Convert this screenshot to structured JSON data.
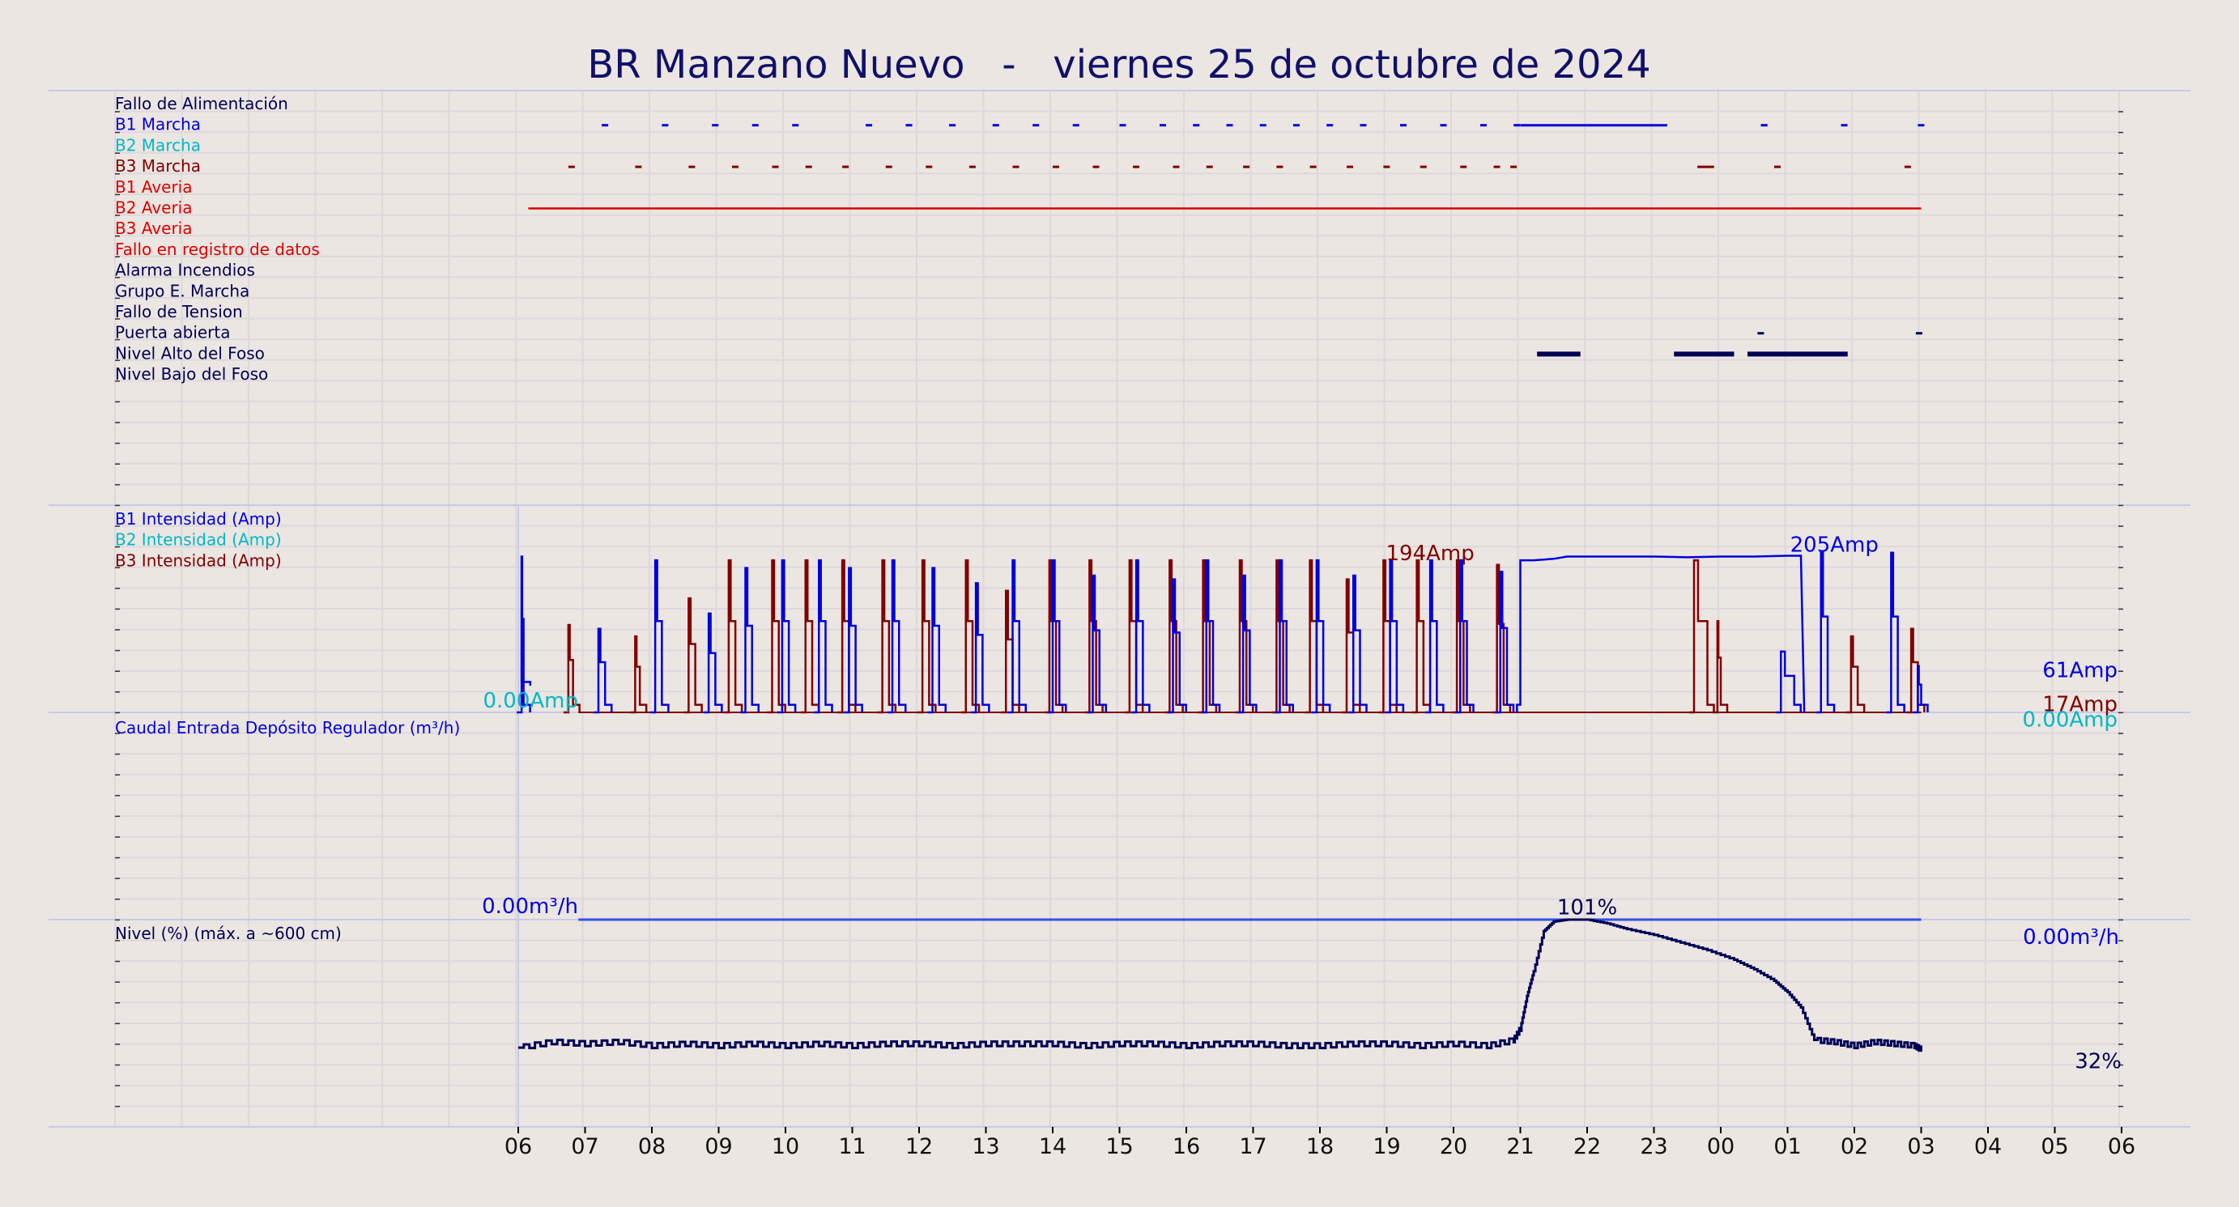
{
  "page": {
    "title": "BR Manzano Nuevo   -   viernes 25 de octubre de 2024",
    "background": "#ebe6e1"
  },
  "colors": {
    "blue": "#0000dd",
    "cyan": "#00b8c8",
    "darkred": "#800000",
    "red": "#dd0000",
    "navy": "#000055",
    "title": "#10106a"
  },
  "chart_data": [
    {
      "type": "line",
      "name": "status-panel",
      "labels": [
        {
          "text": "Fallo de Alimentación",
          "color": "#000055"
        },
        {
          "text": "B1 Marcha",
          "color": "#0000dd"
        },
        {
          "text": "B2 Marcha",
          "color": "#00b8c8"
        },
        {
          "text": "B3 Marcha",
          "color": "#800000"
        },
        {
          "text": "B1 Averia",
          "color": "#dd0000"
        },
        {
          "text": "B2 Averia",
          "color": "#dd0000"
        },
        {
          "text": "B3 Averia",
          "color": "#dd0000"
        },
        {
          "text": "Fallo en registro de datos",
          "color": "#dd0000"
        },
        {
          "text": "Alarma Incendios",
          "color": "#000055"
        },
        {
          "text": "Grupo E. Marcha",
          "color": "#000055"
        },
        {
          "text": "Fallo de Tension",
          "color": "#000055"
        },
        {
          "text": "Puerta abierta",
          "color": "#000055"
        },
        {
          "text": "Nivel Alto del Foso",
          "color": "#000055"
        },
        {
          "text": "Nivel Bajo del Foso",
          "color": "#000055"
        }
      ],
      "b1_run_segments": [
        [
          19.25,
          19.3
        ],
        [
          20.15,
          20.2
        ],
        [
          20.9,
          20.95
        ],
        [
          21.5,
          21.55
        ],
        [
          22.1,
          22.15
        ],
        [
          23.2,
          23.25
        ],
        [
          23.8,
          23.85
        ],
        [
          24.45,
          24.5
        ],
        [
          25.1,
          25.15
        ],
        [
          25.7,
          25.75
        ],
        [
          26.3,
          26.35
        ],
        [
          27.0,
          27.05
        ],
        [
          27.6,
          27.65
        ],
        [
          28.1,
          28.15
        ],
        [
          28.6,
          28.65
        ],
        [
          29.1,
          29.15
        ],
        [
          29.6,
          29.65
        ],
        [
          30.1,
          30.15
        ],
        [
          30.6,
          30.65
        ],
        [
          31.2,
          31.25
        ],
        [
          31.8,
          31.85
        ],
        [
          32.4,
          32.45
        ],
        [
          32.9,
          32.95
        ],
        [
          33.0,
          35.2
        ],
        [
          36.6,
          36.7
        ],
        [
          37.8,
          37.85
        ],
        [
          38.95,
          39.0
        ]
      ],
      "b3_run_segments": [
        [
          18.75,
          18.8
        ],
        [
          19.75,
          19.8
        ],
        [
          20.55,
          20.6
        ],
        [
          21.2,
          21.25
        ],
        [
          21.8,
          21.85
        ],
        [
          22.3,
          22.35
        ],
        [
          22.85,
          22.9
        ],
        [
          23.5,
          23.55
        ],
        [
          24.1,
          24.15
        ],
        [
          24.75,
          24.8
        ],
        [
          25.4,
          25.45
        ],
        [
          26.0,
          26.05
        ],
        [
          26.6,
          26.65
        ],
        [
          27.2,
          27.25
        ],
        [
          27.8,
          27.85
        ],
        [
          28.3,
          28.35
        ],
        [
          28.85,
          28.9
        ],
        [
          29.35,
          29.4
        ],
        [
          29.85,
          29.9
        ],
        [
          30.4,
          30.45
        ],
        [
          30.95,
          31.0
        ],
        [
          31.5,
          31.55
        ],
        [
          32.1,
          32.15
        ],
        [
          32.6,
          32.65
        ],
        [
          32.85,
          32.9
        ],
        [
          35.65,
          35.9
        ],
        [
          36.8,
          36.85
        ],
        [
          38.75,
          38.8
        ]
      ],
      "b2_fault_segments": [
        [
          18.15,
          39.0
        ]
      ],
      "high_level_segments": [
        [
          33.25,
          33.9
        ],
        [
          35.3,
          36.2
        ],
        [
          36.4,
          37.9
        ]
      ],
      "door_open_segments": [
        [
          36.55,
          36.58
        ],
        [
          38.92,
          38.98
        ]
      ]
    },
    {
      "type": "line",
      "name": "current-panel",
      "legend": [
        {
          "text": "B1 Intensidad (Amp)",
          "color": "#0000dd"
        },
        {
          "text": "B2 Intensidad (Amp)",
          "color": "#00b8c8"
        },
        {
          "text": "B3 Intensidad (Amp)",
          "color": "#800000"
        }
      ],
      "ylim": [
        0,
        230
      ],
      "annotations": [
        {
          "text": "194Amp",
          "color": "#800000",
          "x": 31.65,
          "y": 194
        },
        {
          "text": "205Amp",
          "color": "#0000dd",
          "x": 37.7,
          "y": 205
        },
        {
          "text": "0.00Amp",
          "color": "#00b8c8",
          "x": 18.9,
          "y": 0
        },
        {
          "text": "61Amp",
          "color": "#0000dd",
          "x": 38.6,
          "y": 40
        },
        {
          "text": "17Amp",
          "color": "#800000",
          "x": 38.6,
          "y": -5
        },
        {
          "text": "0.00Amp",
          "color": "#00b8c8",
          "x": 38.6,
          "y": -25
        }
      ],
      "b1_pulses": [
        [
          18.05,
          18.08,
          205
        ],
        [
          19.2,
          19.3,
          110
        ],
        [
          20.05,
          20.15,
          200
        ],
        [
          20.85,
          20.95,
          130
        ],
        [
          21.4,
          21.5,
          190
        ],
        [
          21.95,
          22.05,
          200
        ],
        [
          22.5,
          22.6,
          200
        ],
        [
          22.95,
          23.05,
          190
        ],
        [
          23.6,
          23.7,
          200
        ],
        [
          24.2,
          24.3,
          190
        ],
        [
          24.85,
          24.95,
          170
        ],
        [
          25.4,
          25.5,
          200
        ],
        [
          26.0,
          26.1,
          200
        ],
        [
          26.6,
          26.7,
          180
        ],
        [
          27.25,
          27.35,
          200
        ],
        [
          27.8,
          27.9,
          175
        ],
        [
          28.3,
          28.4,
          200
        ],
        [
          28.85,
          28.95,
          180
        ],
        [
          29.4,
          29.5,
          200
        ],
        [
          29.95,
          30.05,
          200
        ],
        [
          30.5,
          30.6,
          180
        ],
        [
          31.05,
          31.15,
          200
        ],
        [
          31.65,
          31.75,
          200
        ],
        [
          32.1,
          32.2,
          200
        ],
        [
          32.7,
          32.8,
          185
        ]
      ],
      "b1_long_run": [
        [
          32.95,
          33.0,
          10
        ],
        [
          33.0,
          33.05,
          200
        ],
        [
          33.2,
          200
        ],
        [
          33.5,
          202
        ],
        [
          33.7,
          205
        ],
        [
          34.0,
          205
        ],
        [
          34.5,
          205
        ],
        [
          35.0,
          205
        ],
        [
          35.5,
          204
        ],
        [
          36.0,
          205
        ],
        [
          36.5,
          205
        ],
        [
          37.0,
          206
        ],
        [
          37.2,
          206
        ],
        [
          37.25,
          0
        ]
      ],
      "b1_late": [
        [
          36.9,
          37.1,
          80
        ],
        [
          37.5,
          37.6,
          210
        ],
        [
          38.55,
          38.65,
          210
        ],
        [
          38.95,
          39.0,
          61
        ]
      ],
      "b3_pulses": [
        [
          18.75,
          18.82,
          115
        ],
        [
          19.75,
          19.82,
          100
        ],
        [
          20.55,
          20.65,
          150
        ],
        [
          21.15,
          21.25,
          200
        ],
        [
          21.8,
          21.9,
          200
        ],
        [
          22.3,
          22.4,
          200
        ],
        [
          22.85,
          22.95,
          200
        ],
        [
          23.45,
          23.55,
          200
        ],
        [
          24.05,
          24.15,
          200
        ],
        [
          24.7,
          24.8,
          200
        ],
        [
          25.3,
          25.4,
          160
        ],
        [
          25.95,
          26.05,
          200
        ],
        [
          26.55,
          26.65,
          200
        ],
        [
          27.15,
          27.25,
          200
        ],
        [
          27.75,
          27.85,
          200
        ],
        [
          28.25,
          28.35,
          200
        ],
        [
          28.8,
          28.9,
          200
        ],
        [
          29.35,
          29.45,
          200
        ],
        [
          29.85,
          29.95,
          200
        ],
        [
          30.4,
          30.5,
          175
        ],
        [
          30.95,
          31.05,
          200
        ],
        [
          31.45,
          31.55,
          200
        ],
        [
          32.05,
          32.15,
          200
        ],
        [
          32.65,
          32.75,
          194
        ],
        [
          35.6,
          35.8,
          200
        ],
        [
          35.95,
          36.0,
          120
        ],
        [
          37.95,
          38.05,
          100
        ],
        [
          38.85,
          38.95,
          110
        ]
      ],
      "b3_last_value": 17
    },
    {
      "type": "line",
      "name": "flow-panel",
      "legend": [
        {
          "text": "Caudal Entrada Depósito Regulador (m³/h)",
          "color": "#0000dd"
        }
      ],
      "ylim": [
        0,
        10
      ],
      "series": [
        {
          "x": [
            18.9,
            39.0
          ],
          "y": [
            0,
            0
          ]
        }
      ],
      "annotations": [
        {
          "text": "0.00m³/h",
          "color": "#0000dd",
          "x": 18.0,
          "y": 0
        },
        {
          "text": "0.00m³/h",
          "color": "#0000dd",
          "x": 39.0,
          "y": -1
        }
      ]
    },
    {
      "type": "line",
      "name": "level-panel",
      "legend": [
        {
          "text": "Nivel (%) (máx. a ~600 cm)",
          "color": "#000055"
        }
      ],
      "ylim": [
        0,
        100
      ],
      "annotations": [
        {
          "text": "101%",
          "color": "#000055",
          "x": 34.0,
          "y": 101
        },
        {
          "text": "32%",
          "color": "#000055",
          "x": 39.0,
          "y": 24
        }
      ],
      "series": [
        {
          "x": [
            18.0,
            18.5,
            19.0,
            19.5,
            20.0,
            20.5,
            21.0,
            21.5,
            22.0,
            22.5,
            23.0,
            23.5,
            24.0,
            24.5,
            25.0,
            25.5,
            26.0,
            26.5,
            27.0,
            27.5,
            28.0,
            28.5,
            29.0,
            29.5,
            30.0,
            30.5,
            31.0,
            31.5,
            32.0,
            32.5,
            32.9,
            33.0,
            33.1,
            33.2,
            33.35,
            33.5,
            33.7,
            34.0,
            34.3,
            34.6,
            35.0,
            35.4,
            35.8,
            36.2,
            36.5,
            36.8,
            37.0,
            37.2,
            37.4,
            37.7,
            38.0,
            38.3,
            38.6,
            38.9,
            39.0
          ],
          "y": [
            33,
            36,
            35,
            36,
            34,
            35,
            34,
            35,
            34,
            35,
            34,
            35,
            35,
            34,
            35,
            35,
            35,
            34,
            35,
            35,
            34,
            35,
            35,
            34,
            34,
            35,
            35,
            34,
            35,
            34,
            37,
            43,
            60,
            73,
            94,
            99,
            100,
            100,
            98,
            95,
            92,
            88,
            84,
            79,
            74,
            68,
            62,
            54,
            37,
            36,
            34,
            36,
            35,
            34,
            32
          ]
        }
      ]
    }
  ],
  "x_axis": {
    "tick_labels": [
      "06",
      "07",
      "08",
      "09",
      "10",
      "11",
      "12",
      "13",
      "14",
      "15",
      "16",
      "17",
      "18",
      "19",
      "20",
      "21",
      "22",
      "23",
      "00",
      "01",
      "02",
      "03",
      "04",
      "05",
      "06"
    ]
  }
}
